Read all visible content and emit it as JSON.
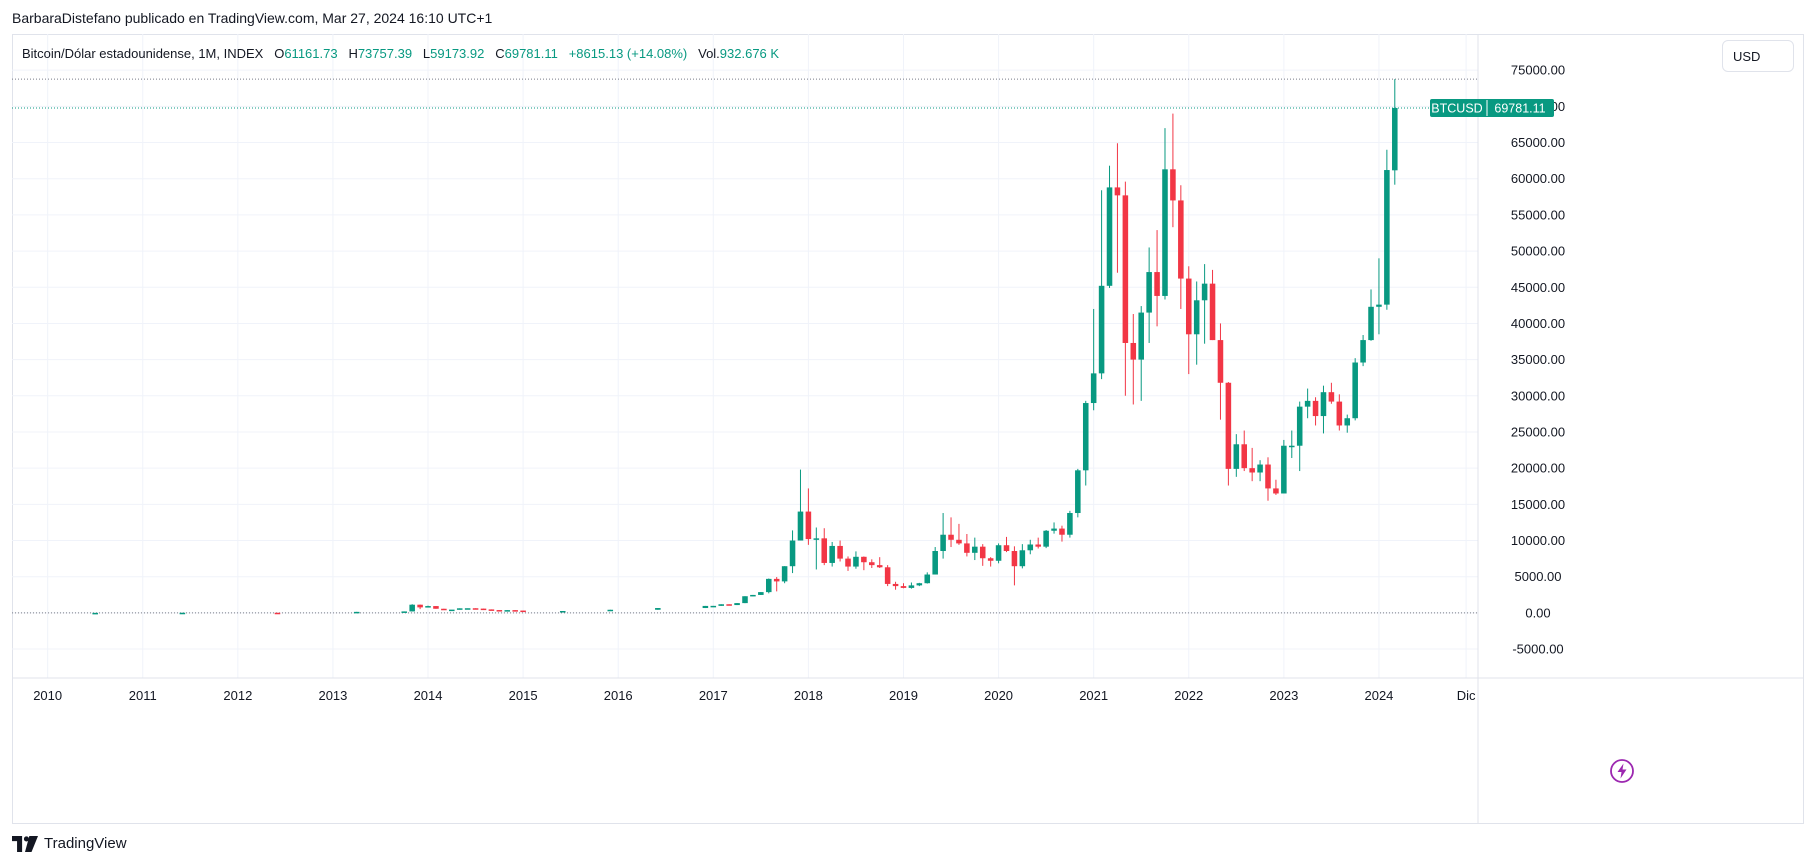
{
  "publisher_line": "BarbaraDistefano publicado en TradingView.com, Mar 27, 2024 16:10 UTC+1",
  "legend": {
    "symbol": "Bitcoin/Dólar estadounidense, 1M, INDEX",
    "o_label": "O",
    "o_value": "61161.73",
    "h_label": "H",
    "h_value": "73757.39",
    "l_label": "L",
    "l_value": "59173.92",
    "c_label": "C",
    "c_value": "69781.11",
    "change": "+8615.13 (+14.08%)",
    "vol_label": "Vol.",
    "vol_value": "932.676 K"
  },
  "currency_button": "USD",
  "price_tag": {
    "symbol": "BTCUSD",
    "value": "69781.11"
  },
  "footer_brand": "TradingView",
  "icons": {
    "logo": "tradingview-logo-icon",
    "flash": "lightning-icon"
  },
  "colors": {
    "up": "#089981",
    "down": "#f23645",
    "grid": "#f0f3fa",
    "text": "#131722",
    "badge": "#089981"
  },
  "chart_data": {
    "type": "candlestick",
    "interval": "1M",
    "y_ticks": [
      "75000.00",
      "70000.00",
      "65000.00",
      "60000.00",
      "55000.00",
      "50000.00",
      "45000.00",
      "40000.00",
      "35000.00",
      "30000.00",
      "25000.00",
      "20000.00",
      "15000.00",
      "10000.00",
      "5000.00",
      "0.00",
      "-5000.00"
    ],
    "y_tick_values": [
      75000,
      70000,
      65000,
      60000,
      55000,
      50000,
      45000,
      40000,
      35000,
      30000,
      25000,
      20000,
      15000,
      10000,
      5000,
      0,
      -5000
    ],
    "x_ticks": [
      "2010",
      "2011",
      "2012",
      "2013",
      "2014",
      "2015",
      "2016",
      "2017",
      "2018",
      "2019",
      "2020",
      "2021",
      "2022",
      "2023",
      "2024",
      "Dic"
    ],
    "x_tick_dates": [
      "2010-01",
      "2011-01",
      "2012-01",
      "2013-01",
      "2014-01",
      "2015-01",
      "2016-01",
      "2017-01",
      "2018-01",
      "2019-01",
      "2020-01",
      "2021-01",
      "2022-01",
      "2023-01",
      "2024-01",
      "2024-12"
    ],
    "ylim": [
      -9000,
      80000
    ],
    "xlim": [
      "2009-09",
      "2025-02"
    ],
    "last_close": 69781.11,
    "period_high": 73757.39,
    "candles": [
      {
        "t": "2017-08",
        "o": 2870,
        "h": 4750,
        "l": 2700,
        "c": 4700
      },
      {
        "t": "2017-09",
        "o": 4700,
        "h": 4950,
        "l": 2970,
        "c": 4350
      },
      {
        "t": "2017-10",
        "o": 4350,
        "h": 6450,
        "l": 4100,
        "c": 6450
      },
      {
        "t": "2017-11",
        "o": 6450,
        "h": 11400,
        "l": 5500,
        "c": 10000
      },
      {
        "t": "2017-12",
        "o": 10000,
        "h": 19800,
        "l": 10000,
        "c": 14000
      },
      {
        "t": "2018-01",
        "o": 14000,
        "h": 17200,
        "l": 9400,
        "c": 10200
      },
      {
        "t": "2018-02",
        "o": 10200,
        "h": 11800,
        "l": 6000,
        "c": 10300
      },
      {
        "t": "2018-03",
        "o": 10300,
        "h": 11700,
        "l": 6600,
        "c": 6900
      },
      {
        "t": "2018-04",
        "o": 6900,
        "h": 9800,
        "l": 6400,
        "c": 9250
      },
      {
        "t": "2018-05",
        "o": 9250,
        "h": 10000,
        "l": 7100,
        "c": 7500
      },
      {
        "t": "2018-06",
        "o": 7500,
        "h": 7800,
        "l": 5800,
        "c": 6400
      },
      {
        "t": "2018-07",
        "o": 6400,
        "h": 8500,
        "l": 6100,
        "c": 7750
      },
      {
        "t": "2018-08",
        "o": 7750,
        "h": 7800,
        "l": 5900,
        "c": 7000
      },
      {
        "t": "2018-09",
        "o": 7000,
        "h": 7400,
        "l": 6200,
        "c": 6600
      },
      {
        "t": "2018-10",
        "o": 6600,
        "h": 7700,
        "l": 6200,
        "c": 6300
      },
      {
        "t": "2018-11",
        "o": 6300,
        "h": 6600,
        "l": 3700,
        "c": 4000
      },
      {
        "t": "2018-12",
        "o": 4000,
        "h": 4300,
        "l": 3200,
        "c": 3700
      },
      {
        "t": "2019-01",
        "o": 3700,
        "h": 4100,
        "l": 3400,
        "c": 3450
      },
      {
        "t": "2019-02",
        "o": 3450,
        "h": 4200,
        "l": 3350,
        "c": 3800
      },
      {
        "t": "2019-03",
        "o": 3800,
        "h": 4150,
        "l": 3700,
        "c": 4100
      },
      {
        "t": "2019-04",
        "o": 4100,
        "h": 5600,
        "l": 4050,
        "c": 5300
      },
      {
        "t": "2019-05",
        "o": 5300,
        "h": 9100,
        "l": 5300,
        "c": 8550
      },
      {
        "t": "2019-06",
        "o": 8550,
        "h": 13800,
        "l": 7500,
        "c": 10800
      },
      {
        "t": "2019-07",
        "o": 10800,
        "h": 13200,
        "l": 9100,
        "c": 10100
      },
      {
        "t": "2019-08",
        "o": 10100,
        "h": 12300,
        "l": 9400,
        "c": 9600
      },
      {
        "t": "2019-09",
        "o": 9600,
        "h": 10900,
        "l": 7800,
        "c": 8300
      },
      {
        "t": "2019-10",
        "o": 8300,
        "h": 10400,
        "l": 7300,
        "c": 9150
      },
      {
        "t": "2019-11",
        "o": 9150,
        "h": 9500,
        "l": 6500,
        "c": 7550
      },
      {
        "t": "2019-12",
        "o": 7550,
        "h": 7700,
        "l": 6400,
        "c": 7200
      },
      {
        "t": "2020-01",
        "o": 7200,
        "h": 9600,
        "l": 6850,
        "c": 9350
      },
      {
        "t": "2020-02",
        "o": 9350,
        "h": 10500,
        "l": 8400,
        "c": 8550
      },
      {
        "t": "2020-03",
        "o": 8550,
        "h": 9200,
        "l": 3800,
        "c": 6450
      },
      {
        "t": "2020-04",
        "o": 6450,
        "h": 9500,
        "l": 6150,
        "c": 8650
      },
      {
        "t": "2020-05",
        "o": 8650,
        "h": 10100,
        "l": 8100,
        "c": 9450
      },
      {
        "t": "2020-06",
        "o": 9450,
        "h": 10400,
        "l": 8900,
        "c": 9150
      },
      {
        "t": "2020-07",
        "o": 9150,
        "h": 11450,
        "l": 8950,
        "c": 11350
      },
      {
        "t": "2020-08",
        "o": 11350,
        "h": 12500,
        "l": 10950,
        "c": 11650
      },
      {
        "t": "2020-09",
        "o": 11650,
        "h": 12050,
        "l": 9850,
        "c": 10800
      },
      {
        "t": "2020-10",
        "o": 10800,
        "h": 14100,
        "l": 10400,
        "c": 13800
      },
      {
        "t": "2020-11",
        "o": 13800,
        "h": 19900,
        "l": 13200,
        "c": 19700
      },
      {
        "t": "2020-12",
        "o": 19700,
        "h": 29300,
        "l": 17600,
        "c": 29000
      },
      {
        "t": "2021-01",
        "o": 29000,
        "h": 42000,
        "l": 28000,
        "c": 33100
      },
      {
        "t": "2021-02",
        "o": 33100,
        "h": 58400,
        "l": 32300,
        "c": 45200
      },
      {
        "t": "2021-03",
        "o": 45200,
        "h": 61800,
        "l": 44900,
        "c": 58800
      },
      {
        "t": "2021-04",
        "o": 58800,
        "h": 64900,
        "l": 47000,
        "c": 57700
      },
      {
        "t": "2021-05",
        "o": 57700,
        "h": 59600,
        "l": 30000,
        "c": 37300
      },
      {
        "t": "2021-06",
        "o": 37300,
        "h": 41300,
        "l": 28800,
        "c": 35000
      },
      {
        "t": "2021-07",
        "o": 35000,
        "h": 42400,
        "l": 29300,
        "c": 41500
      },
      {
        "t": "2021-08",
        "o": 41500,
        "h": 50500,
        "l": 37300,
        "c": 47100
      },
      {
        "t": "2021-09",
        "o": 47100,
        "h": 52900,
        "l": 39600,
        "c": 43800
      },
      {
        "t": "2021-10",
        "o": 43800,
        "h": 67000,
        "l": 43300,
        "c": 61300
      },
      {
        "t": "2021-11",
        "o": 61300,
        "h": 69000,
        "l": 53300,
        "c": 57000
      },
      {
        "t": "2021-12",
        "o": 57000,
        "h": 59100,
        "l": 42000,
        "c": 46200
      },
      {
        "t": "2022-01",
        "o": 46200,
        "h": 47900,
        "l": 33000,
        "c": 38500
      },
      {
        "t": "2022-02",
        "o": 38500,
        "h": 45800,
        "l": 34300,
        "c": 43200
      },
      {
        "t": "2022-03",
        "o": 43200,
        "h": 48200,
        "l": 37200,
        "c": 45500
      },
      {
        "t": "2022-04",
        "o": 45500,
        "h": 47400,
        "l": 37700,
        "c": 37700
      },
      {
        "t": "2022-05",
        "o": 37700,
        "h": 40000,
        "l": 26700,
        "c": 31800
      },
      {
        "t": "2022-06",
        "o": 31800,
        "h": 31900,
        "l": 17600,
        "c": 19900
      },
      {
        "t": "2022-07",
        "o": 19900,
        "h": 24700,
        "l": 18800,
        "c": 23300
      },
      {
        "t": "2022-08",
        "o": 23300,
        "h": 25200,
        "l": 19600,
        "c": 20000
      },
      {
        "t": "2022-09",
        "o": 20000,
        "h": 22800,
        "l": 18200,
        "c": 19400
      },
      {
        "t": "2022-10",
        "o": 19400,
        "h": 21100,
        "l": 18200,
        "c": 20500
      },
      {
        "t": "2022-11",
        "o": 20500,
        "h": 21500,
        "l": 15500,
        "c": 17200
      },
      {
        "t": "2022-12",
        "o": 17200,
        "h": 18400,
        "l": 16300,
        "c": 16500
      },
      {
        "t": "2023-01",
        "o": 16500,
        "h": 23900,
        "l": 16500,
        "c": 23100
      },
      {
        "t": "2023-02",
        "o": 23100,
        "h": 25200,
        "l": 21400,
        "c": 23100
      },
      {
        "t": "2023-03",
        "o": 23100,
        "h": 29200,
        "l": 19600,
        "c": 28500
      },
      {
        "t": "2023-04",
        "o": 28500,
        "h": 31000,
        "l": 26900,
        "c": 29300
      },
      {
        "t": "2023-05",
        "o": 29300,
        "h": 29800,
        "l": 25900,
        "c": 27200
      },
      {
        "t": "2023-06",
        "o": 27200,
        "h": 31400,
        "l": 24800,
        "c": 30500
      },
      {
        "t": "2023-07",
        "o": 30500,
        "h": 31800,
        "l": 28900,
        "c": 29200
      },
      {
        "t": "2023-08",
        "o": 29200,
        "h": 30200,
        "l": 25200,
        "c": 25900
      },
      {
        "t": "2023-09",
        "o": 25900,
        "h": 27400,
        "l": 24900,
        "c": 26900
      },
      {
        "t": "2023-10",
        "o": 26900,
        "h": 35200,
        "l": 26600,
        "c": 34600
      },
      {
        "t": "2023-11",
        "o": 34600,
        "h": 38400,
        "l": 34100,
        "c": 37700
      },
      {
        "t": "2023-12",
        "o": 37700,
        "h": 44700,
        "l": 37600,
        "c": 42300
      },
      {
        "t": "2024-01",
        "o": 42300,
        "h": 49000,
        "l": 38500,
        "c": 42600
      },
      {
        "t": "2024-02",
        "o": 42600,
        "h": 64000,
        "l": 41900,
        "c": 61200
      },
      {
        "t": "2024-03",
        "o": 61161.73,
        "h": 73757.39,
        "l": 59173.92,
        "c": 69781.11
      }
    ],
    "early_closes": [
      {
        "t": "2010-07",
        "c": 0.1
      },
      {
        "t": "2011-06",
        "c": 16
      },
      {
        "t": "2012-06",
        "c": 6.7
      },
      {
        "t": "2013-04",
        "c": 140
      },
      {
        "t": "2013-10",
        "c": 200
      },
      {
        "t": "2013-11",
        "o": 200,
        "h": 1200,
        "l": 200,
        "c": 1130
      },
      {
        "t": "2013-12",
        "o": 1130,
        "h": 1150,
        "l": 520,
        "c": 760
      },
      {
        "t": "2014-01",
        "o": 760,
        "h": 1000,
        "l": 760,
        "c": 940
      },
      {
        "t": "2014-02",
        "c": 570
      },
      {
        "t": "2014-03",
        "c": 450
      },
      {
        "t": "2014-04",
        "c": 450
      },
      {
        "t": "2014-05",
        "c": 630
      },
      {
        "t": "2014-06",
        "c": 640
      },
      {
        "t": "2014-07",
        "c": 590
      },
      {
        "t": "2014-08",
        "c": 480
      },
      {
        "t": "2014-09",
        "c": 390
      },
      {
        "t": "2014-10",
        "c": 340
      },
      {
        "t": "2014-11",
        "c": 380
      },
      {
        "t": "2014-12",
        "c": 320
      },
      {
        "t": "2015-01",
        "c": 220
      },
      {
        "t": "2015-06",
        "c": 260
      },
      {
        "t": "2015-12",
        "c": 430
      },
      {
        "t": "2016-06",
        "c": 670
      },
      {
        "t": "2016-12",
        "c": 960
      },
      {
        "t": "2017-01",
        "c": 970
      },
      {
        "t": "2017-02",
        "c": 1190
      },
      {
        "t": "2017-03",
        "c": 1080
      },
      {
        "t": "2017-04",
        "c": 1350
      },
      {
        "t": "2017-05",
        "c": 2300
      },
      {
        "t": "2017-06",
        "c": 2480
      },
      {
        "t": "2017-07",
        "c": 2870
      }
    ]
  }
}
